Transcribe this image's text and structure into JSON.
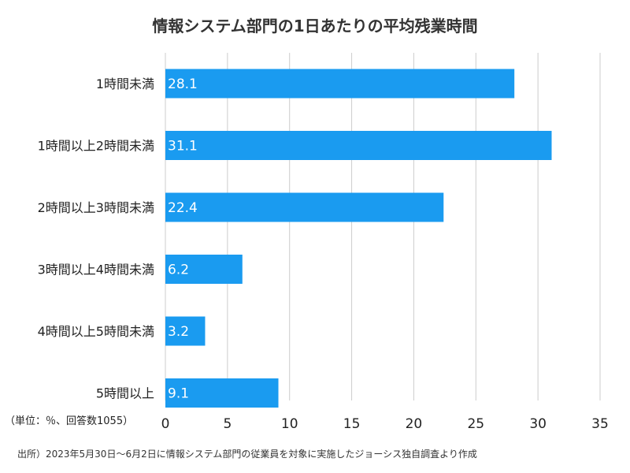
{
  "chart_data": {
    "type": "bar",
    "orientation": "horizontal",
    "title": "情報システム部門の1日あたりの平均残業時間",
    "categories": [
      "1時間未満",
      "1時間以上2時間未満",
      "2時間以上3時間未満",
      "3時間以上4時間未満",
      "4時間以上5時間未満",
      "5時間以上"
    ],
    "values": [
      28.1,
      31.1,
      22.4,
      6.2,
      3.2,
      9.1
    ],
    "value_labels": [
      "28.1",
      "31.1",
      "22.4",
      "6.2",
      "3.2",
      "9.1"
    ],
    "xlim": [
      0,
      35
    ],
    "xticks": [
      0,
      5,
      10,
      15,
      20,
      25,
      30,
      35
    ],
    "grid": true,
    "bar_color": "#1a9bf0",
    "unit_note": "（単位：％、回答数1055）",
    "source": "出所）2023年5月30日〜6月2日に情報システム部門の従業員を対象に実施したジョーシス独自調査より作成"
  }
}
